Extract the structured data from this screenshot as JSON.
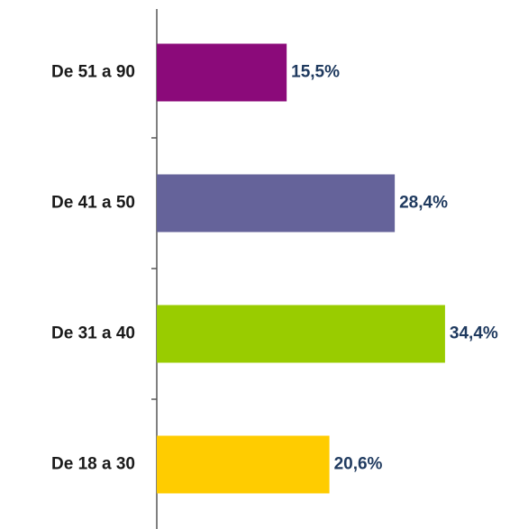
{
  "chart_data": {
    "type": "bar",
    "orientation": "horizontal",
    "categories": [
      "De 51 a 90",
      "De 41 a 50",
      "De 31 a 40",
      "De 18 a 30"
    ],
    "values": [
      15.5,
      28.4,
      34.4,
      20.6
    ],
    "value_labels": [
      "15,5%",
      "28,4%",
      "34,4%",
      "20,6%"
    ],
    "colors": [
      "#8b0a7a",
      "#65639a",
      "#99cc00",
      "#ffcc00"
    ]
  }
}
